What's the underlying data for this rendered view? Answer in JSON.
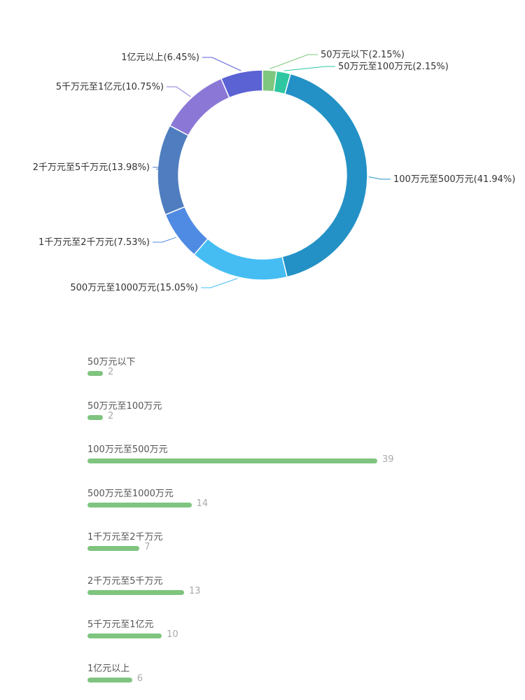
{
  "chart_data": [
    {
      "type": "pie",
      "donut": true,
      "slices": [
        {
          "category": "50万元以下",
          "percent": 2.15,
          "label": "50万元以下(2.15%)",
          "color": "#7dc87e"
        },
        {
          "category": "50万元至100万元",
          "percent": 2.15,
          "label": "50万元至100万元(2.15%)",
          "color": "#2ec7a1"
        },
        {
          "category": "100万元至500万元",
          "percent": 41.94,
          "label": "100万元至500万元(41.94%)",
          "color": "#2391c5"
        },
        {
          "category": "500万元至1000万元",
          "percent": 15.05,
          "label": "500万元至1000万元(15.05%)",
          "color": "#45bdf3"
        },
        {
          "category": "1千万元至2千万元",
          "percent": 7.53,
          "label": "1千万元至2千万元(7.53%)",
          "color": "#4f8be3"
        },
        {
          "category": "2千万元至5千万元",
          "percent": 13.98,
          "label": "2千万元至5千万元(13.98%)",
          "color": "#4f7dbf"
        },
        {
          "category": "5千万元至1亿元",
          "percent": 10.75,
          "label": "5千万元至1亿元(10.75%)",
          "color": "#8b78d6"
        },
        {
          "category": "1亿元以上",
          "percent": 6.45,
          "label": "1亿元以上(6.45%)",
          "color": "#5b62d3"
        }
      ]
    },
    {
      "type": "bar",
      "orientation": "horizontal",
      "color": "#7fc47f",
      "categories": [
        "50万元以下",
        "50万元至100万元",
        "100万元至500万元",
        "500万元至1000万元",
        "1千万元至2千万元",
        "2千万元至5千万元",
        "5千万元至1亿元",
        "1亿元以上"
      ],
      "values": [
        2,
        2,
        39,
        14,
        7,
        13,
        10,
        6
      ],
      "value_labels": [
        "2",
        "2",
        "39",
        "14",
        "7",
        "13",
        "10",
        "6"
      ]
    }
  ]
}
